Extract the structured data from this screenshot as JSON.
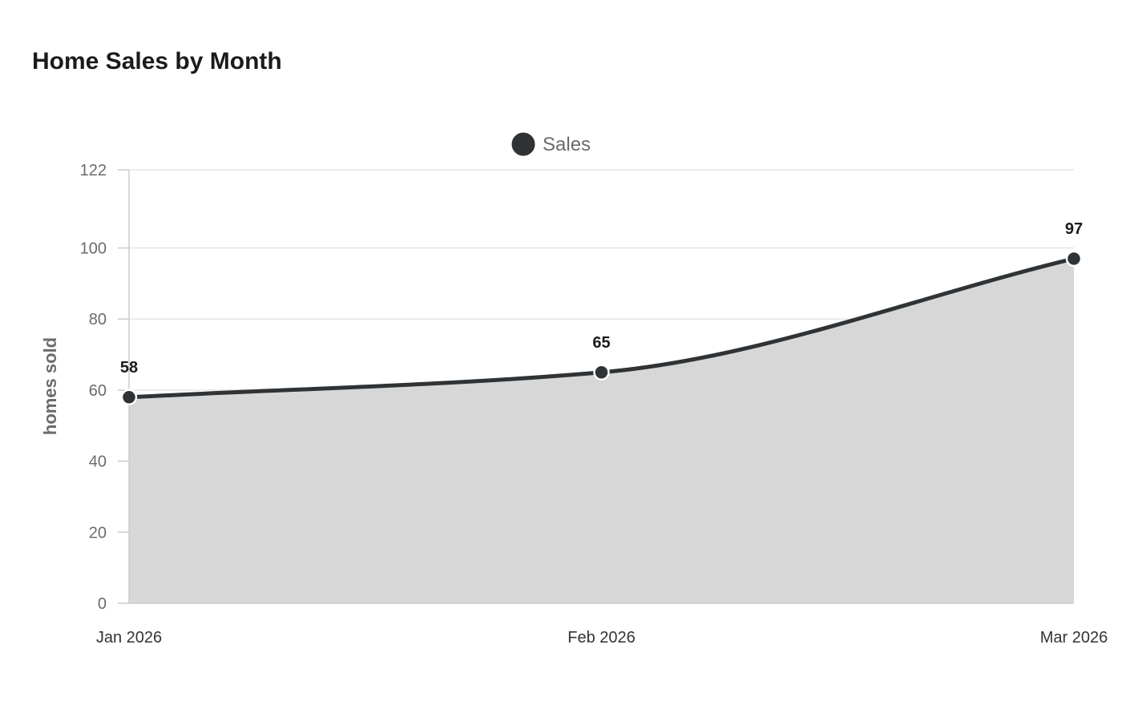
{
  "chart_data": {
    "type": "area",
    "title": "Home Sales by Month",
    "xlabel": "",
    "ylabel": "homes sold",
    "categories": [
      "Jan 2026",
      "Feb 2026",
      "Mar 2026"
    ],
    "series": [
      {
        "name": "Sales",
        "values": [
          58,
          65,
          97
        ]
      }
    ],
    "ylim": [
      0,
      122
    ],
    "yticks": [
      0,
      20,
      40,
      60,
      80,
      100,
      122
    ],
    "data_labels": [
      "58",
      "65",
      "97"
    ],
    "grid": true,
    "legend_position": "top-center",
    "colors": {
      "line": "#2f3336",
      "fill": "#d6d7d6",
      "marker": "#2f3336",
      "marker_stroke": "#ffffff",
      "gridline": "#e6e6e6",
      "axis": "#cccccc"
    }
  }
}
